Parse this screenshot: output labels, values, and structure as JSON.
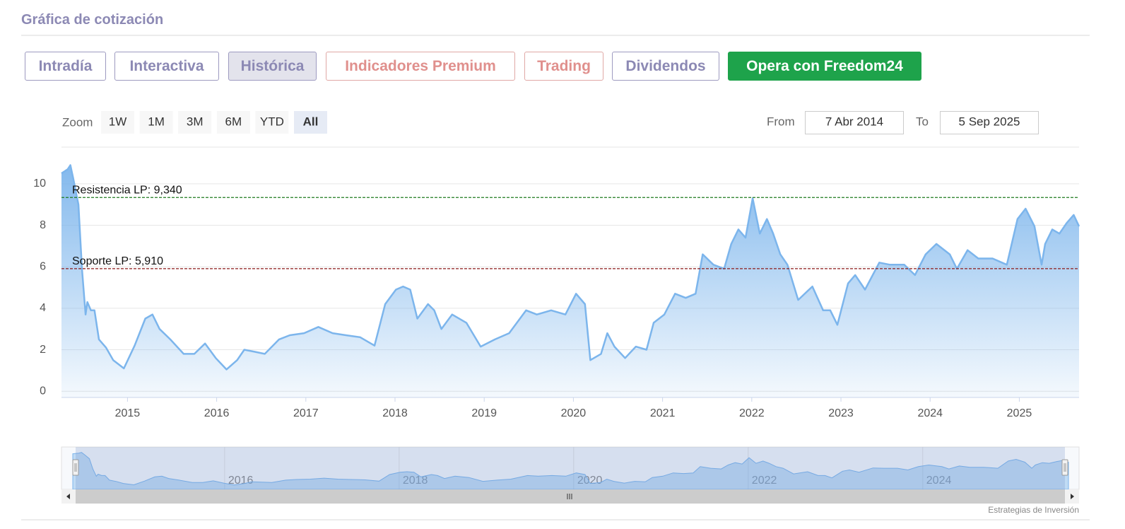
{
  "header": {
    "title": "Gráfica de cotización"
  },
  "tabs": {
    "items": [
      "Intradía",
      "Interactiva",
      "Histórica",
      "Indicadores Premium",
      "Trading",
      "Dividendos",
      "Opera con Freedom24"
    ],
    "selected": 2
  },
  "zoom": {
    "label": "Zoom",
    "buttons": [
      "1W",
      "1M",
      "3M",
      "6M",
      "YTD",
      "All"
    ],
    "selected": 5
  },
  "range": {
    "from_label": "From",
    "from": "7 Abr 2014",
    "to_label": "To",
    "to": "5 Sep 2025"
  },
  "chart_data": {
    "type": "area",
    "color": "#7cb5ec",
    "x": [
      2014.26,
      2014.33,
      2014.36,
      2014.39,
      2014.45,
      2014.49,
      2014.53,
      2014.55,
      2014.59,
      2014.63,
      2014.68,
      2014.76,
      2014.84,
      2014.96,
      2015.08,
      2015.2,
      2015.28,
      2015.36,
      2015.48,
      2015.63,
      2015.75,
      2015.87,
      2015.99,
      2016.11,
      2016.23,
      2016.31,
      2016.43,
      2016.54,
      2016.7,
      2016.82,
      2016.98,
      2017.14,
      2017.3,
      2017.45,
      2017.61,
      2017.77,
      2017.89,
      2018.01,
      2018.09,
      2018.17,
      2018.25,
      2018.37,
      2018.44,
      2018.52,
      2018.64,
      2018.8,
      2018.96,
      2019.12,
      2019.28,
      2019.47,
      2019.59,
      2019.75,
      2019.91,
      2020.03,
      2020.13,
      2020.19,
      2020.31,
      2020.38,
      2020.46,
      2020.58,
      2020.7,
      2020.82,
      2020.9,
      2021.02,
      2021.14,
      2021.26,
      2021.37,
      2021.45,
      2021.57,
      2021.69,
      2021.77,
      2021.85,
      2021.93,
      2022.01,
      2022.09,
      2022.17,
      2022.24,
      2022.32,
      2022.4,
      2022.52,
      2022.68,
      2022.8,
      2022.88,
      2022.96,
      2023.08,
      2023.16,
      2023.27,
      2023.43,
      2023.55,
      2023.71,
      2023.83,
      2023.95,
      2024.07,
      2024.22,
      2024.3,
      2024.42,
      2024.54,
      2024.7,
      2024.86,
      2024.98,
      2025.07,
      2025.17,
      2025.25,
      2025.29,
      2025.37,
      2025.45,
      2025.53,
      2025.61,
      2025.67
    ],
    "values": [
      10.5,
      10.7,
      10.9,
      10.3,
      9.0,
      5.9,
      3.7,
      4.3,
      3.9,
      3.9,
      2.5,
      2.1,
      1.5,
      1.1,
      2.2,
      3.5,
      3.7,
      3.0,
      2.5,
      1.8,
      1.8,
      2.3,
      1.6,
      1.05,
      1.5,
      2.0,
      1.9,
      1.8,
      2.5,
      2.7,
      2.8,
      3.1,
      2.8,
      2.7,
      2.6,
      2.2,
      4.2,
      4.9,
      5.05,
      4.9,
      3.5,
      4.2,
      3.9,
      3.0,
      3.7,
      3.3,
      2.15,
      2.5,
      2.8,
      3.9,
      3.7,
      3.9,
      3.7,
      4.7,
      4.2,
      1.5,
      1.8,
      2.8,
      2.15,
      1.6,
      2.15,
      2.0,
      3.3,
      3.7,
      4.7,
      4.5,
      4.7,
      6.6,
      6.1,
      5.9,
      7.1,
      7.8,
      7.4,
      9.3,
      7.6,
      8.3,
      7.6,
      6.6,
      6.1,
      4.4,
      5.05,
      3.9,
      3.9,
      3.2,
      5.2,
      5.6,
      4.9,
      6.2,
      6.1,
      6.1,
      5.6,
      6.6,
      7.1,
      6.6,
      5.9,
      6.8,
      6.4,
      6.4,
      6.1,
      8.3,
      8.8,
      7.95,
      6.1,
      7.1,
      7.8,
      7.6,
      8.1,
      8.5,
      7.95
    ],
    "xlim": [
      2014.26,
      2025.67
    ],
    "xticks": [
      2015,
      2016,
      2017,
      2018,
      2019,
      2020,
      2021,
      2022,
      2023,
      2024,
      2025
    ],
    "ylim": [
      -0.3,
      11.7
    ],
    "yticks": [
      0,
      2,
      4,
      6,
      8,
      10
    ],
    "grid": true,
    "plot_lines": [
      {
        "label": "Resistencia LP: 9,340",
        "value": 9.34,
        "color": "#1e7b1e"
      },
      {
        "label": "Soporte LP: 5,910",
        "value": 5.91,
        "color": "#8b1a1a"
      }
    ],
    "navigator": {
      "xticks": [
        2016,
        2018,
        2020,
        2022,
        2024
      ]
    }
  },
  "credit": "Estrategias de Inversión"
}
